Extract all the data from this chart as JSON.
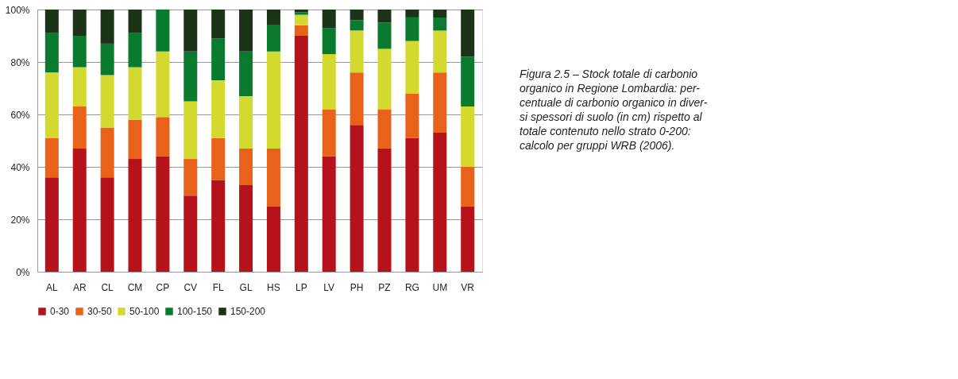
{
  "chart_data": {
    "type": "bar",
    "stacked": true,
    "categories": [
      "AL",
      "AR",
      "CL",
      "CM",
      "CP",
      "CV",
      "FL",
      "GL",
      "HS",
      "LP",
      "LV",
      "PH",
      "PZ",
      "RG",
      "UM",
      "VR"
    ],
    "series": [
      {
        "name": "0-30",
        "color": "#b5121b",
        "values": [
          36,
          47,
          36,
          43,
          44,
          29,
          35,
          33,
          25,
          90,
          44,
          56,
          47,
          51,
          53,
          25
        ]
      },
      {
        "name": "30-50",
        "color": "#e8621a",
        "values": [
          15,
          16,
          19,
          15,
          15,
          14,
          16,
          14,
          22,
          4,
          18,
          20,
          15,
          17,
          23,
          15
        ]
      },
      {
        "name": "50-100",
        "color": "#d4d930",
        "values": [
          25,
          15,
          20,
          20,
          25,
          22,
          22,
          20,
          37,
          4,
          21,
          16,
          23,
          20,
          16,
          23
        ]
      },
      {
        "name": "100-150",
        "color": "#0a7a2e",
        "values": [
          15,
          12,
          12,
          13,
          16,
          19,
          16,
          17,
          10,
          1,
          10,
          4,
          10,
          9,
          5,
          19
        ]
      },
      {
        "name": "150-200",
        "color": "#1c3318",
        "values": [
          9,
          10,
          13,
          9,
          0,
          16,
          11,
          16,
          6,
          1,
          7,
          4,
          5,
          3,
          3,
          18
        ]
      }
    ],
    "ylim": [
      0,
      100
    ],
    "yticks": [
      {
        "value": 0,
        "label": "0%"
      },
      {
        "value": 20,
        "label": "20%"
      },
      {
        "value": 40,
        "label": "40%"
      },
      {
        "value": 60,
        "label": "60%"
      },
      {
        "value": 80,
        "label": "80%"
      },
      {
        "value": 100,
        "label": "100%"
      }
    ],
    "grid": "y",
    "legend": "bottom",
    "annotations": [
      "Figura 2.5 – Stock totale di carbonio\norganico in Regione Lombardia: per-\ncentuale di carbonio organico in diver-\nsi spessori di suolo (in cm) rispetto al\ntotale  contenuto nello strato 0-200:\ncalcolo per gruppi WRB (2006)."
    ]
  }
}
